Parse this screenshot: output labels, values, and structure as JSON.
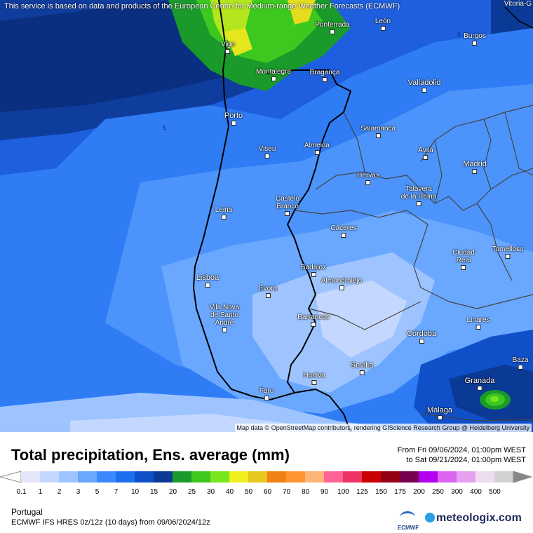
{
  "map": {
    "disclaimer": "This service is based on data and products of the European Centre for Medium-range Weather Forecasts (ECMWF)",
    "attribution": "Map data © OpenStreetMap contributors, rendering GIScience Research Group @ Heidelberg University",
    "corner_label": "Vitoria-G",
    "contour_label": "5",
    "cities": [
      {
        "name": "Vigo"
      },
      {
        "name": "Ponferrada"
      },
      {
        "name": "León"
      },
      {
        "name": "Burgos"
      },
      {
        "name": "Montalegre"
      },
      {
        "name": "Bragança"
      },
      {
        "name": "Valladolid"
      },
      {
        "name": "Porto"
      },
      {
        "name": "Salamanca"
      },
      {
        "name": "Viseu"
      },
      {
        "name": "Almeida"
      },
      {
        "name": "Ávila"
      },
      {
        "name": "Madrid"
      },
      {
        "name": "Hervás"
      },
      {
        "name": "Castelo\nBranco"
      },
      {
        "name": "Talavera\nde la Reina"
      },
      {
        "name": "Leiria"
      },
      {
        "name": "Cáceres"
      },
      {
        "name": "Ciudad\nReal"
      },
      {
        "name": "Tomelloso"
      },
      {
        "name": "Badajoz"
      },
      {
        "name": "Lisboa"
      },
      {
        "name": "Évora"
      },
      {
        "name": "Almendralejo"
      },
      {
        "name": "Vila Nova\nde Santo\nAndré"
      },
      {
        "name": "Barrancos"
      },
      {
        "name": "Linares"
      },
      {
        "name": "Córdoba"
      },
      {
        "name": "Sevilla"
      },
      {
        "name": "Huelva"
      },
      {
        "name": "Baza"
      },
      {
        "name": "Granada"
      },
      {
        "name": "Faro"
      },
      {
        "name": "Málaga"
      }
    ]
  },
  "header": {
    "title": "Total precipitation, Ens. average (mm)",
    "from": "From Fri 09/06/2024, 01:00pm WEST",
    "to": "to Sat 09/21/2024, 01:00pm WEST"
  },
  "legend": {
    "ticks": [
      "0.1",
      "1",
      "2",
      "3",
      "5",
      "7",
      "10",
      "15",
      "20",
      "25",
      "30",
      "40",
      "50",
      "60",
      "70",
      "80",
      "90",
      "100",
      "125",
      "150",
      "175",
      "200",
      "250",
      "300",
      "400",
      "500"
    ],
    "colors": [
      "#e6e6fa",
      "#c4d8ff",
      "#9ec4ff",
      "#6aa8ff",
      "#3c88ff",
      "#1e6ef0",
      "#0f4fc8",
      "#0a3a96",
      "#1a9a2a",
      "#3cc81e",
      "#78e61e",
      "#f0f01e",
      "#e6c81e",
      "#f08214",
      "#ff9632",
      "#ffb478",
      "#ff6496",
      "#f03264",
      "#c80000",
      "#960014",
      "#780050",
      "#b400f0",
      "#dc64f0",
      "#e6a0f0",
      "#f0dcf0",
      "#d2d2d2"
    ]
  },
  "footer": {
    "region": "Portugal",
    "model": "ECMWF IFS HRES 0z/12z (10 days) from 09/06/2024/12z",
    "ecmwf_logo": "ECMWF",
    "brand": "meteologix.com"
  }
}
